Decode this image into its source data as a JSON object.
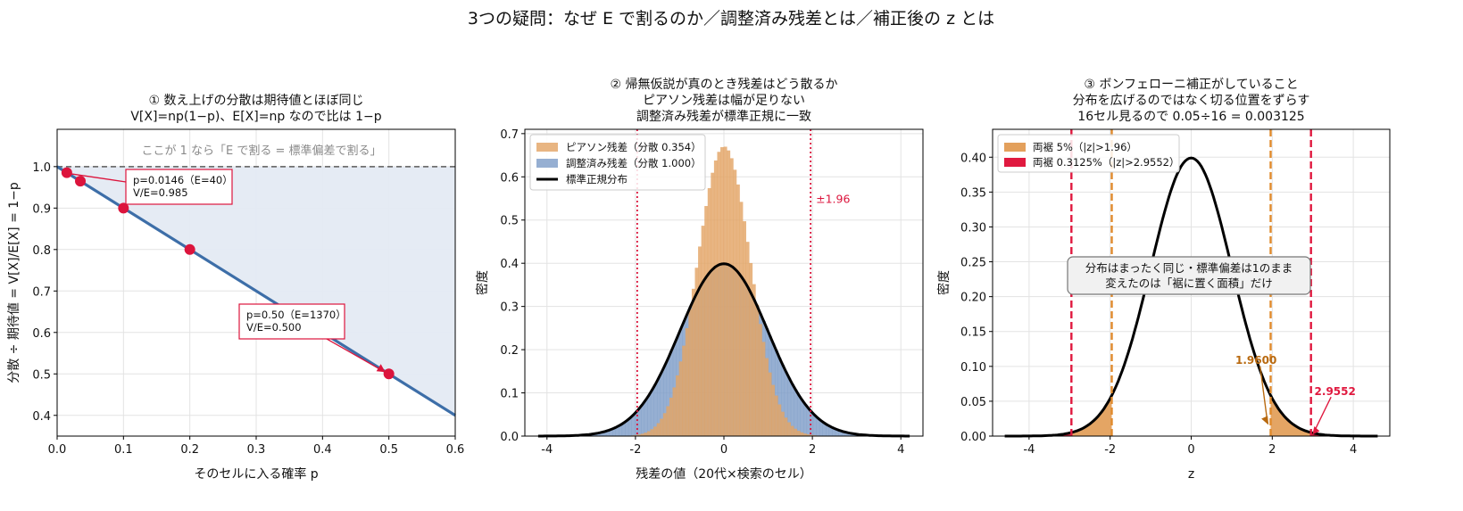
{
  "figure": {
    "suptitle": "3つの疑問：なぜ E で割るのか／調整済み残差とは／補正後の z とは"
  },
  "chart_data": [
    {
      "type": "line",
      "title": [
        "① 数え上げの分散は期待値とほぼ同じ",
        "V[X]=np(1−p)、E[X]=np なので比は 1−p"
      ],
      "xlabel": "そのセルに入る確率 p",
      "ylabel": "分散 ÷ 期待値 = V[X]/E[X] = 1−p",
      "xlim": [
        0,
        0.6
      ],
      "ylim": [
        0.35,
        1.09
      ],
      "xticks": [
        "0.0",
        "0.1",
        "0.2",
        "0.3",
        "0.4",
        "0.5",
        "0.6"
      ],
      "yticks": [
        "0.4",
        "0.5",
        "0.6",
        "0.7",
        "0.8",
        "0.9",
        "1.0"
      ],
      "line": {
        "x": [
          0,
          0.6
        ],
        "y": [
          1.0,
          0.4
        ]
      },
      "reference_line_y": 1.0,
      "reference_text": "ここが 1 なら「E で割る = 標準偏差で割る」",
      "points": {
        "x": [
          0.0146,
          0.035,
          0.1,
          0.2,
          0.5
        ],
        "y": [
          0.9854,
          0.965,
          0.9,
          0.8,
          0.5
        ]
      },
      "annotations": [
        {
          "lines": [
            "p=0.0146（E=40）",
            "V/E=0.985"
          ],
          "x": 0.0146,
          "y": 0.985
        },
        {
          "lines": [
            "p=0.50（E=1370）",
            "V/E=0.500"
          ],
          "x": 0.5,
          "y": 0.5
        }
      ],
      "grid": true
    },
    {
      "type": "histogram",
      "title": [
        "② 帰無仮説が真のとき残差はどう散るか",
        "ピアソン残差は幅が足りない",
        "調整済み残差が標準正規に一致"
      ],
      "xlabel": "残差の値（20代×検索のセル）",
      "ylabel": "密度",
      "xlim": [
        -4.5,
        4.5
      ],
      "ylim": [
        0,
        0.71
      ],
      "xticks": [
        "-4",
        "-2",
        "0",
        "2",
        "4"
      ],
      "yticks": [
        "0.0",
        "0.1",
        "0.2",
        "0.3",
        "0.4",
        "0.5",
        "0.6",
        "0.7"
      ],
      "series": [
        {
          "name": "ピアソン残差（分散 0.354）",
          "color": "#e3a567",
          "sd": 0.595
        },
        {
          "name": "調整済み残差（分散 1.000）",
          "color": "#7f9dc8",
          "sd": 1.0
        },
        {
          "name": "標準正規分布",
          "color": "#000000"
        }
      ],
      "vlines": [
        -1.96,
        1.96
      ],
      "vline_label": "±1.96",
      "legend": "top-left",
      "grid": true
    },
    {
      "type": "line",
      "title": [
        "③ ボンフェローニ補正がしていること",
        "分布を広げるのではなく切る位置をずらす",
        "16セル見るので 0.05÷16 = 0.003125"
      ],
      "xlabel": "z",
      "ylabel": "密度",
      "xlim": [
        -4.9,
        4.9
      ],
      "ylim": [
        0,
        0.44
      ],
      "xticks": [
        "-4",
        "-2",
        "0",
        "2",
        "4"
      ],
      "yticks": [
        "0.00",
        "0.05",
        "0.10",
        "0.15",
        "0.20",
        "0.25",
        "0.30",
        "0.35",
        "0.40"
      ],
      "series": [
        {
          "name": "両裾 5%（|z|>1.96）",
          "color": "#e3a05c"
        },
        {
          "name": "両裾 0.3125%（|z|>2.9552）",
          "color": "#e0193f"
        }
      ],
      "critical_values": [
        1.96,
        2.9552
      ],
      "center_text": [
        "分布はまったく同じ・標準偏差は1のまま",
        "変えたのは「裾に置く面積」だけ"
      ],
      "labels": [
        "1.9600",
        "2.9552"
      ],
      "legend": "top-left",
      "grid": true
    }
  ],
  "colors": {
    "line_blue": "#3d6ea8",
    "fill_blue": "#e4eaf3",
    "point_red": "#dc143c",
    "orange": "#e08a2c",
    "orange_text": "#b8690f",
    "red": "#e0193f"
  }
}
